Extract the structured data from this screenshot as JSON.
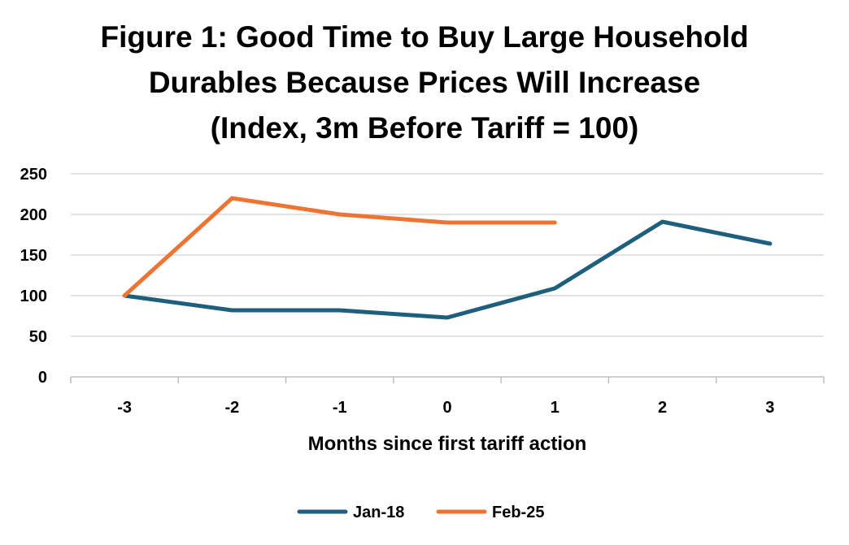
{
  "chart_data": {
    "type": "line",
    "title": [
      "Figure 1: Good Time to Buy Large Household",
      "Durables Because Prices Will Increase",
      "(Index, 3m Before Tariff = 100)"
    ],
    "xlabel": "Months since first tariff action",
    "ylabel": "",
    "categories": [
      "-3",
      "-2",
      "-1",
      "0",
      "1",
      "2",
      "3"
    ],
    "ylim": [
      0,
      250
    ],
    "yticks": [
      "0",
      "50",
      "100",
      "150",
      "200",
      "250"
    ],
    "grid": true,
    "legend_position": "bottom",
    "series": [
      {
        "name": "Jan-18",
        "color": "#1f5f7e",
        "values": [
          100,
          82,
          82,
          73,
          109,
          191,
          164
        ]
      },
      {
        "name": "Feb-25",
        "color": "#ee7433",
        "values": [
          100,
          220,
          200,
          190,
          190,
          null,
          null
        ]
      }
    ]
  }
}
